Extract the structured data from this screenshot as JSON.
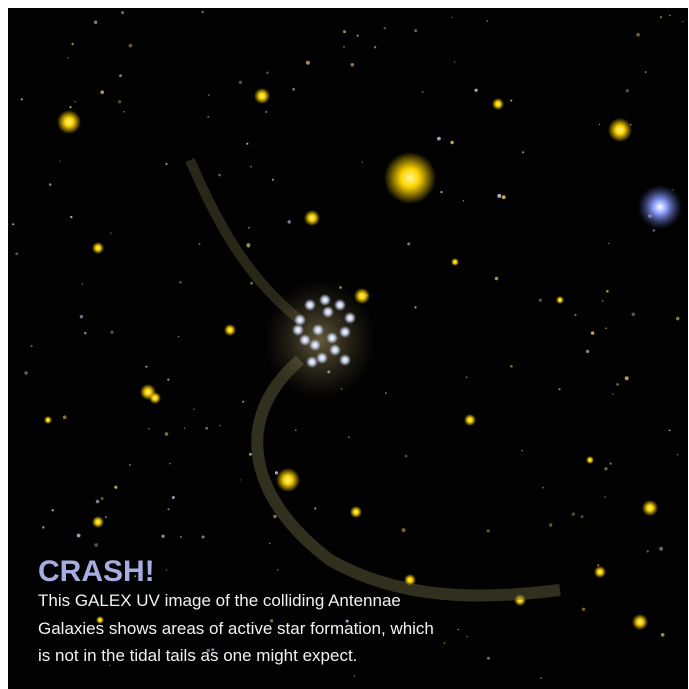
{
  "title": "CRASH!",
  "caption": [
    "This GALEX UV image of the colliding Antennae",
    "Galaxies shows areas of active star formation, which",
    "is not in the tidal tails as one might expect."
  ]
}
